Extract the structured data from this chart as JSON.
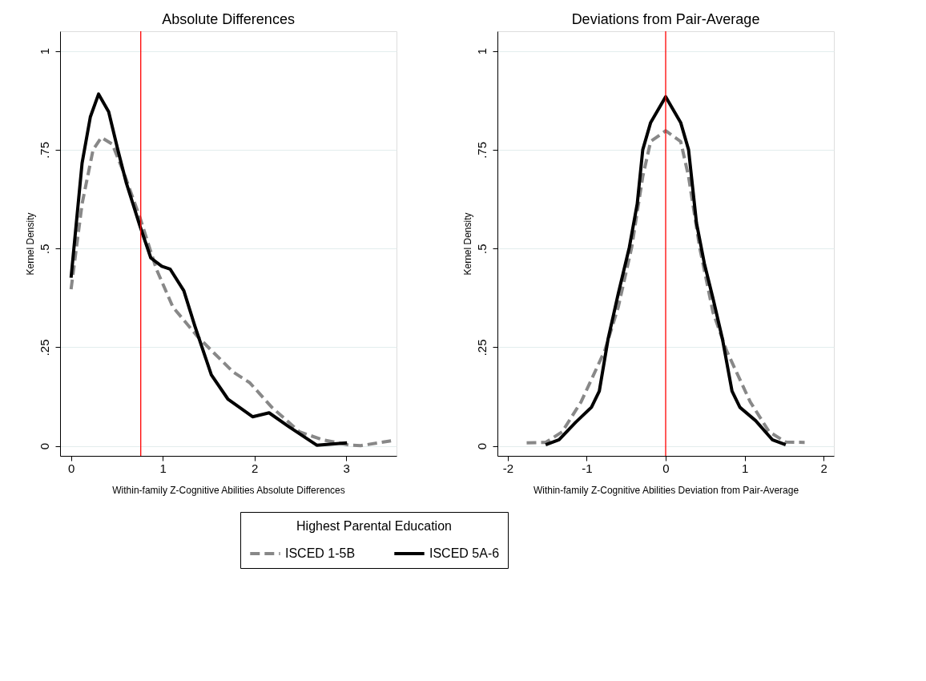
{
  "chart_data": [
    {
      "type": "line",
      "title": "Absolute Differences",
      "xlabel": "Within-family Z-Cognitive Abilities Absolute Differences",
      "ylabel": "Kernel Density",
      "legend_title": "Highest Parental Education",
      "legend": "bottom",
      "grid": "y",
      "xlim": [
        -0.12,
        3.55
      ],
      "xticks": [
        0,
        1,
        2,
        3
      ],
      "ylim": [
        -0.025,
        1.05
      ],
      "yticks": [
        0,
        {
          "value": 0.25,
          "label": ".25"
        },
        {
          "value": 0.5,
          "label": ".5"
        },
        {
          "value": 0.75,
          "label": ".75"
        },
        1
      ],
      "ref_lines": [
        {
          "axis": "x",
          "value": 0.76,
          "color": "#ff0000"
        }
      ],
      "series": [
        {
          "name": "ISCED 1-5B",
          "color": "#888888",
          "line_style": "dashed",
          "x": [
            0,
            0.12,
            0.24,
            0.33,
            0.45,
            0.57,
            0.75,
            0.93,
            1.11,
            1.38,
            1.53,
            1.77,
            1.95,
            2.19,
            2.49,
            2.74,
            3.04,
            3.16,
            3.49
          ],
          "values": [
            0.397,
            0.613,
            0.75,
            0.781,
            0.764,
            0.695,
            0.579,
            0.448,
            0.352,
            0.277,
            0.242,
            0.187,
            0.16,
            0.098,
            0.036,
            0.016,
            0.002,
            0.001,
            0.013
          ]
        },
        {
          "name": "ISCED 5A-6",
          "color": "#000000",
          "line_style": "solid",
          "x": [
            0,
            0.12,
            0.21,
            0.3,
            0.41,
            0.51,
            0.6,
            0.75,
            0.87,
            0.99,
            1.08,
            1.23,
            1.35,
            1.53,
            1.71,
            1.98,
            2.16,
            2.37,
            2.68,
            3.01
          ],
          "values": [
            0.426,
            0.716,
            0.833,
            0.891,
            0.846,
            0.75,
            0.668,
            0.558,
            0.476,
            0.455,
            0.448,
            0.393,
            0.304,
            0.18,
            0.119,
            0.074,
            0.084,
            0.05,
            0.002,
            0.008
          ]
        }
      ]
    },
    {
      "type": "line",
      "title": "Deviations from Pair-Average",
      "xlabel": "Within-family Z-Cognitive Abilities Deviation from Pair-Average",
      "ylabel": "Kernel Density",
      "grid": "y",
      "xlim": [
        -2.13,
        2.13
      ],
      "xticks": [
        -2,
        -1,
        0,
        1,
        2
      ],
      "ylim": [
        -0.025,
        1.05
      ],
      "yticks": [
        0,
        {
          "value": 0.25,
          "label": ".25"
        },
        {
          "value": 0.5,
          "label": ".5"
        },
        {
          "value": 0.75,
          "label": ".75"
        },
        1
      ],
      "ref_lines": [
        {
          "axis": "x",
          "value": 0,
          "color": "#ff0000"
        }
      ],
      "series": [
        {
          "name": "ISCED 1-5B",
          "color": "#888888",
          "line_style": "dashed",
          "x": [
            -1.76,
            -1.52,
            -1.31,
            -1.07,
            -0.77,
            -0.6,
            -0.43,
            -0.29,
            -0.19,
            0,
            0.19,
            0.29,
            0.43,
            0.6,
            0.77,
            1.07,
            1.31,
            1.52,
            1.76
          ],
          "values": [
            0.008,
            0.009,
            0.036,
            0.112,
            0.242,
            0.352,
            0.503,
            0.682,
            0.771,
            0.798,
            0.771,
            0.682,
            0.503,
            0.338,
            0.242,
            0.112,
            0.036,
            0.01,
            0.009
          ]
        },
        {
          "name": "ISCED 5A-6",
          "color": "#000000",
          "line_style": "solid",
          "x": [
            -1.52,
            -1.35,
            -1.14,
            -0.94,
            -0.84,
            -0.73,
            -0.6,
            -0.46,
            -0.36,
            -0.29,
            -0.19,
            0,
            0.19,
            0.29,
            0.39,
            0.49,
            0.6,
            0.72,
            0.84,
            0.94,
            1.14,
            1.35,
            1.52
          ],
          "values": [
            0.003,
            0.016,
            0.06,
            0.098,
            0.139,
            0.27,
            0.386,
            0.503,
            0.613,
            0.75,
            0.819,
            0.884,
            0.819,
            0.75,
            0.565,
            0.462,
            0.373,
            0.27,
            0.139,
            0.098,
            0.064,
            0.016,
            0.003
          ]
        }
      ]
    }
  ]
}
